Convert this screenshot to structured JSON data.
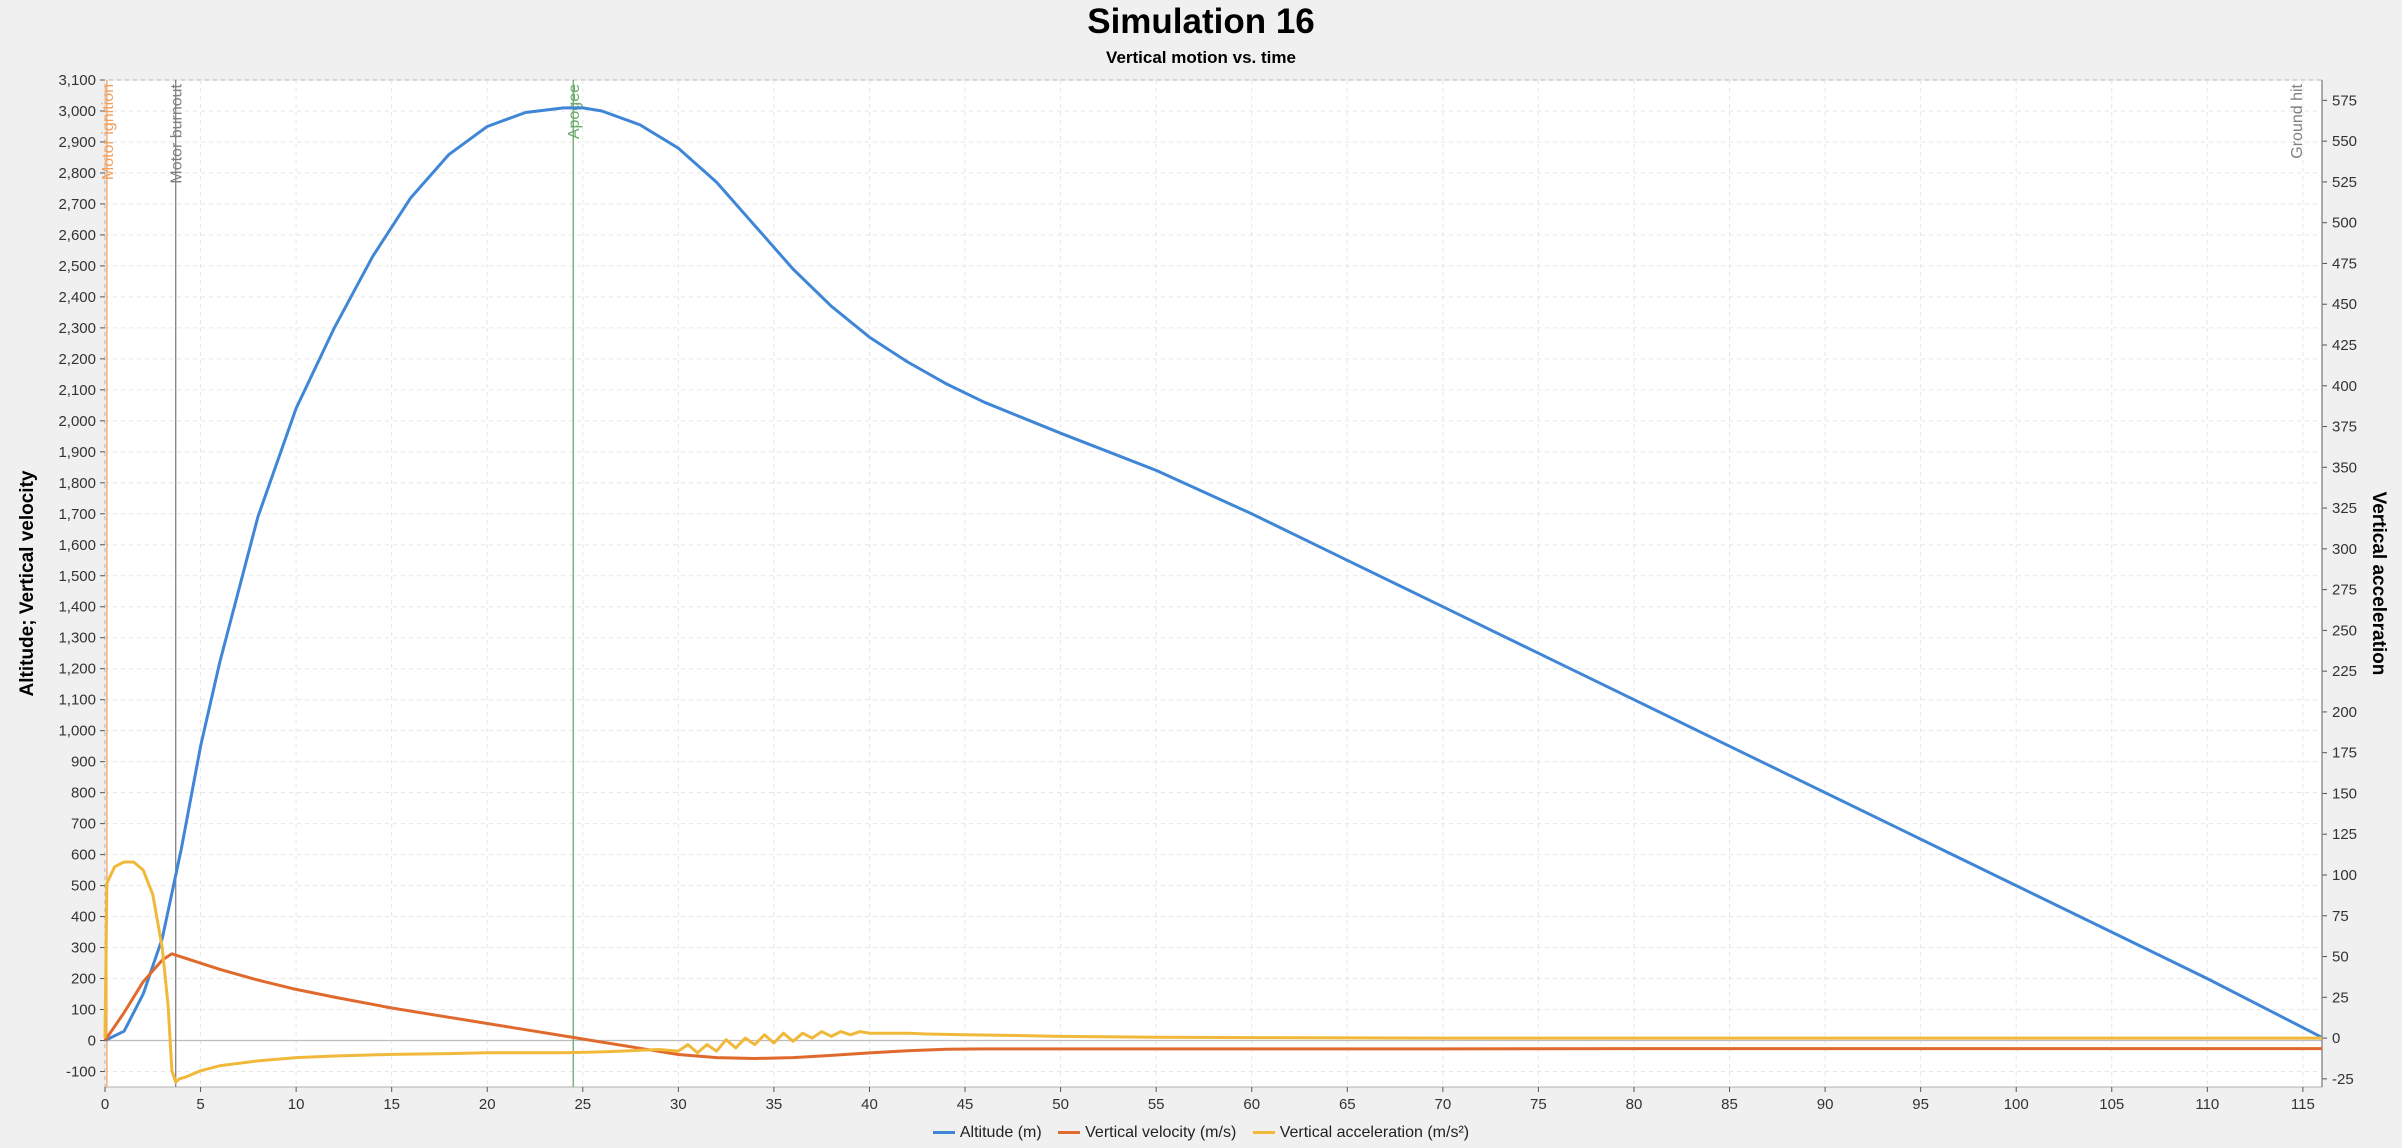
{
  "chart_data": {
    "type": "line",
    "title": "Simulation 16",
    "subtitle": "Vertical motion vs. time",
    "ylabel_left": "Altitude; Vertical velocity",
    "ylabel_right": "Vertical acceleration",
    "xlim": [
      0,
      116
    ],
    "ylim_left": [
      -150,
      3100
    ],
    "ylim_right": [
      -30,
      587.5
    ],
    "x_ticks": [
      0,
      5,
      10,
      15,
      20,
      25,
      30,
      35,
      40,
      45,
      50,
      55,
      60,
      65,
      70,
      75,
      80,
      85,
      90,
      95,
      100,
      105,
      110,
      115
    ],
    "y_left_ticks": [
      -100,
      0,
      100,
      200,
      300,
      400,
      500,
      600,
      700,
      800,
      900,
      1000,
      1100,
      1200,
      1300,
      1400,
      1500,
      1600,
      1700,
      1800,
      1900,
      2000,
      2100,
      2200,
      2300,
      2400,
      2500,
      2600,
      2700,
      2800,
      2900,
      3000,
      3100
    ],
    "y_right_ticks": [
      -25,
      0,
      25,
      50,
      75,
      100,
      125,
      150,
      175,
      200,
      225,
      250,
      275,
      300,
      325,
      350,
      375,
      400,
      425,
      450,
      475,
      500,
      525,
      550,
      575
    ],
    "grid": true,
    "legend_position": "bottom",
    "events": [
      {
        "label": "Motor ignition",
        "x": 0.1,
        "color": "#f0a060"
      },
      {
        "label": "Motor burnout",
        "x": 3.7,
        "color": "#808080"
      },
      {
        "label": "Apogee",
        "x": 24.5,
        "color": "#6aaa6a"
      },
      {
        "label": "Ground hit",
        "x": 116,
        "color": "#808080"
      }
    ],
    "series": [
      {
        "name": "Altitude (m)",
        "axis": "left",
        "color": "#3f87d6",
        "x": [
          0,
          1,
          2,
          3,
          4,
          5,
          6,
          8,
          10,
          12,
          14,
          16,
          18,
          20,
          22,
          24,
          25,
          26,
          28,
          30,
          32,
          34,
          36,
          38,
          40,
          42,
          44,
          46,
          48,
          50,
          55,
          60,
          65,
          70,
          75,
          80,
          85,
          90,
          95,
          100,
          105,
          110,
          116
        ],
        "y": [
          0,
          30,
          150,
          330,
          620,
          950,
          1220,
          1690,
          2040,
          2300,
          2530,
          2720,
          2860,
          2950,
          2995,
          3010,
          3010,
          3000,
          2955,
          2880,
          2770,
          2630,
          2490,
          2370,
          2270,
          2190,
          2120,
          2060,
          2010,
          1960,
          1840,
          1700,
          1550,
          1400,
          1250,
          1100,
          950,
          800,
          650,
          500,
          350,
          200,
          10
        ]
      },
      {
        "name": "Vertical velocity (m/s)",
        "axis": "left",
        "color": "#e06a2e",
        "x": [
          0,
          1,
          2,
          3,
          3.5,
          4,
          6,
          8,
          10,
          12,
          15,
          18,
          20,
          22,
          24,
          26,
          28,
          30,
          32,
          34,
          36,
          38,
          40,
          42,
          44,
          46,
          50,
          55,
          60,
          70,
          80,
          90,
          100,
          110,
          116
        ],
        "y": [
          0,
          90,
          190,
          260,
          280,
          270,
          230,
          195,
          165,
          140,
          105,
          75,
          55,
          35,
          15,
          -5,
          -25,
          -45,
          -55,
          -58,
          -55,
          -48,
          -40,
          -33,
          -28,
          -27,
          -27,
          -27,
          -27,
          -27,
          -26,
          -26,
          -26,
          -26,
          -26
        ]
      },
      {
        "name": "Vertical acceleration (m/s²)",
        "axis": "right",
        "color": "#f0b93a",
        "x": [
          0,
          0.1,
          0.5,
          1,
          1.5,
          2,
          2.5,
          3,
          3.3,
          3.5,
          3.7,
          3.9,
          4.2,
          5,
          6,
          8,
          10,
          12,
          15,
          18,
          20,
          24,
          26,
          28,
          29,
          30,
          30.5,
          31,
          31.5,
          32,
          32.5,
          33,
          33.5,
          34,
          34.5,
          35,
          35.5,
          36,
          36.5,
          37,
          37.5,
          38,
          38.5,
          39,
          39.5,
          40,
          41,
          42,
          43,
          45,
          48,
          50,
          55,
          60,
          70,
          80,
          90,
          100,
          110,
          116
        ],
        "y": [
          0,
          95,
          105,
          108,
          108,
          103,
          88,
          55,
          20,
          -20,
          -27,
          -25,
          -24,
          -20,
          -17,
          -14,
          -12,
          -11,
          -10,
          -9.5,
          -9,
          -9,
          -8.5,
          -7.5,
          -7,
          -8,
          -4,
          -9,
          -4,
          -8,
          -1,
          -6,
          0,
          -4,
          2,
          -3,
          3,
          -2,
          3,
          0,
          4,
          1,
          4,
          2,
          4,
          3,
          3,
          3,
          2.5,
          2,
          1.5,
          1,
          0.5,
          0.3,
          0,
          0,
          0,
          0,
          0,
          0
        ]
      }
    ]
  }
}
